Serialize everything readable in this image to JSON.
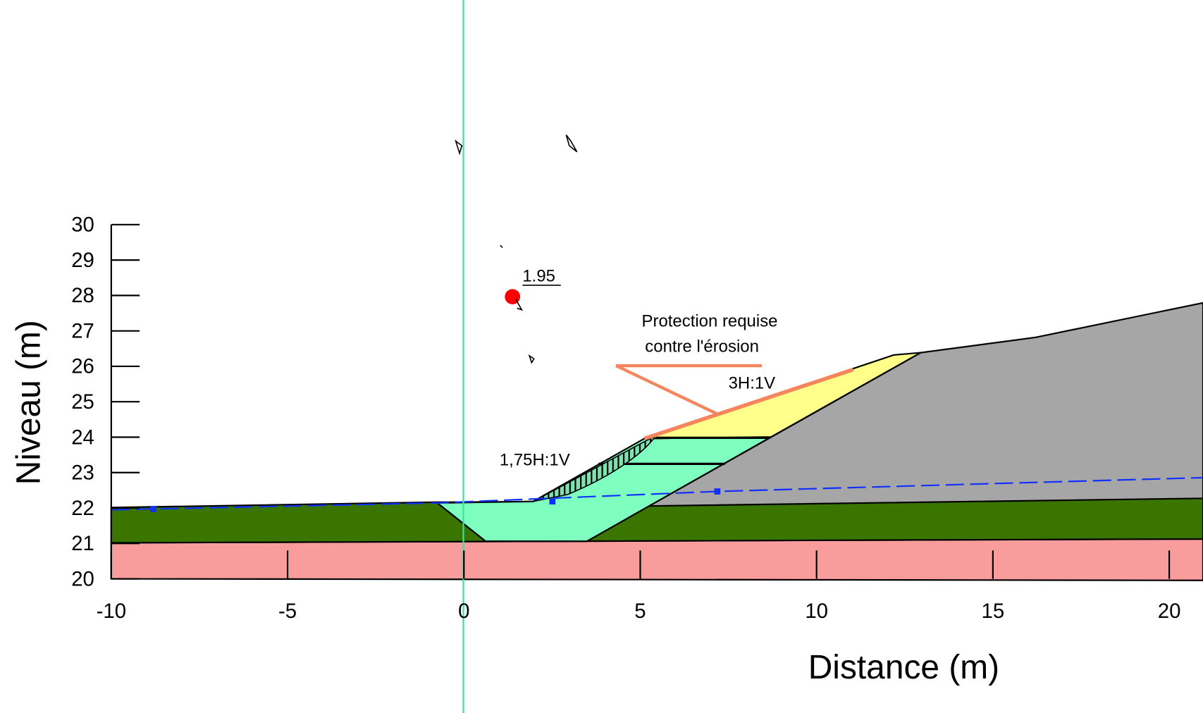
{
  "axes": {
    "x_label": "Distance (m)",
    "y_label": "Niveau (m)",
    "xticks": [
      -10,
      -5,
      0,
      5,
      10,
      15,
      20
    ],
    "yticks": [
      20,
      21,
      22,
      23,
      24,
      25,
      26,
      27,
      28,
      29,
      30
    ]
  },
  "annotations": {
    "factor": "1.95",
    "protection_line1": "Protection requise",
    "protection_line2": "contre l'érosion",
    "slope_upper": "3H:1V",
    "slope_lower": "1,75H:1V"
  }
}
